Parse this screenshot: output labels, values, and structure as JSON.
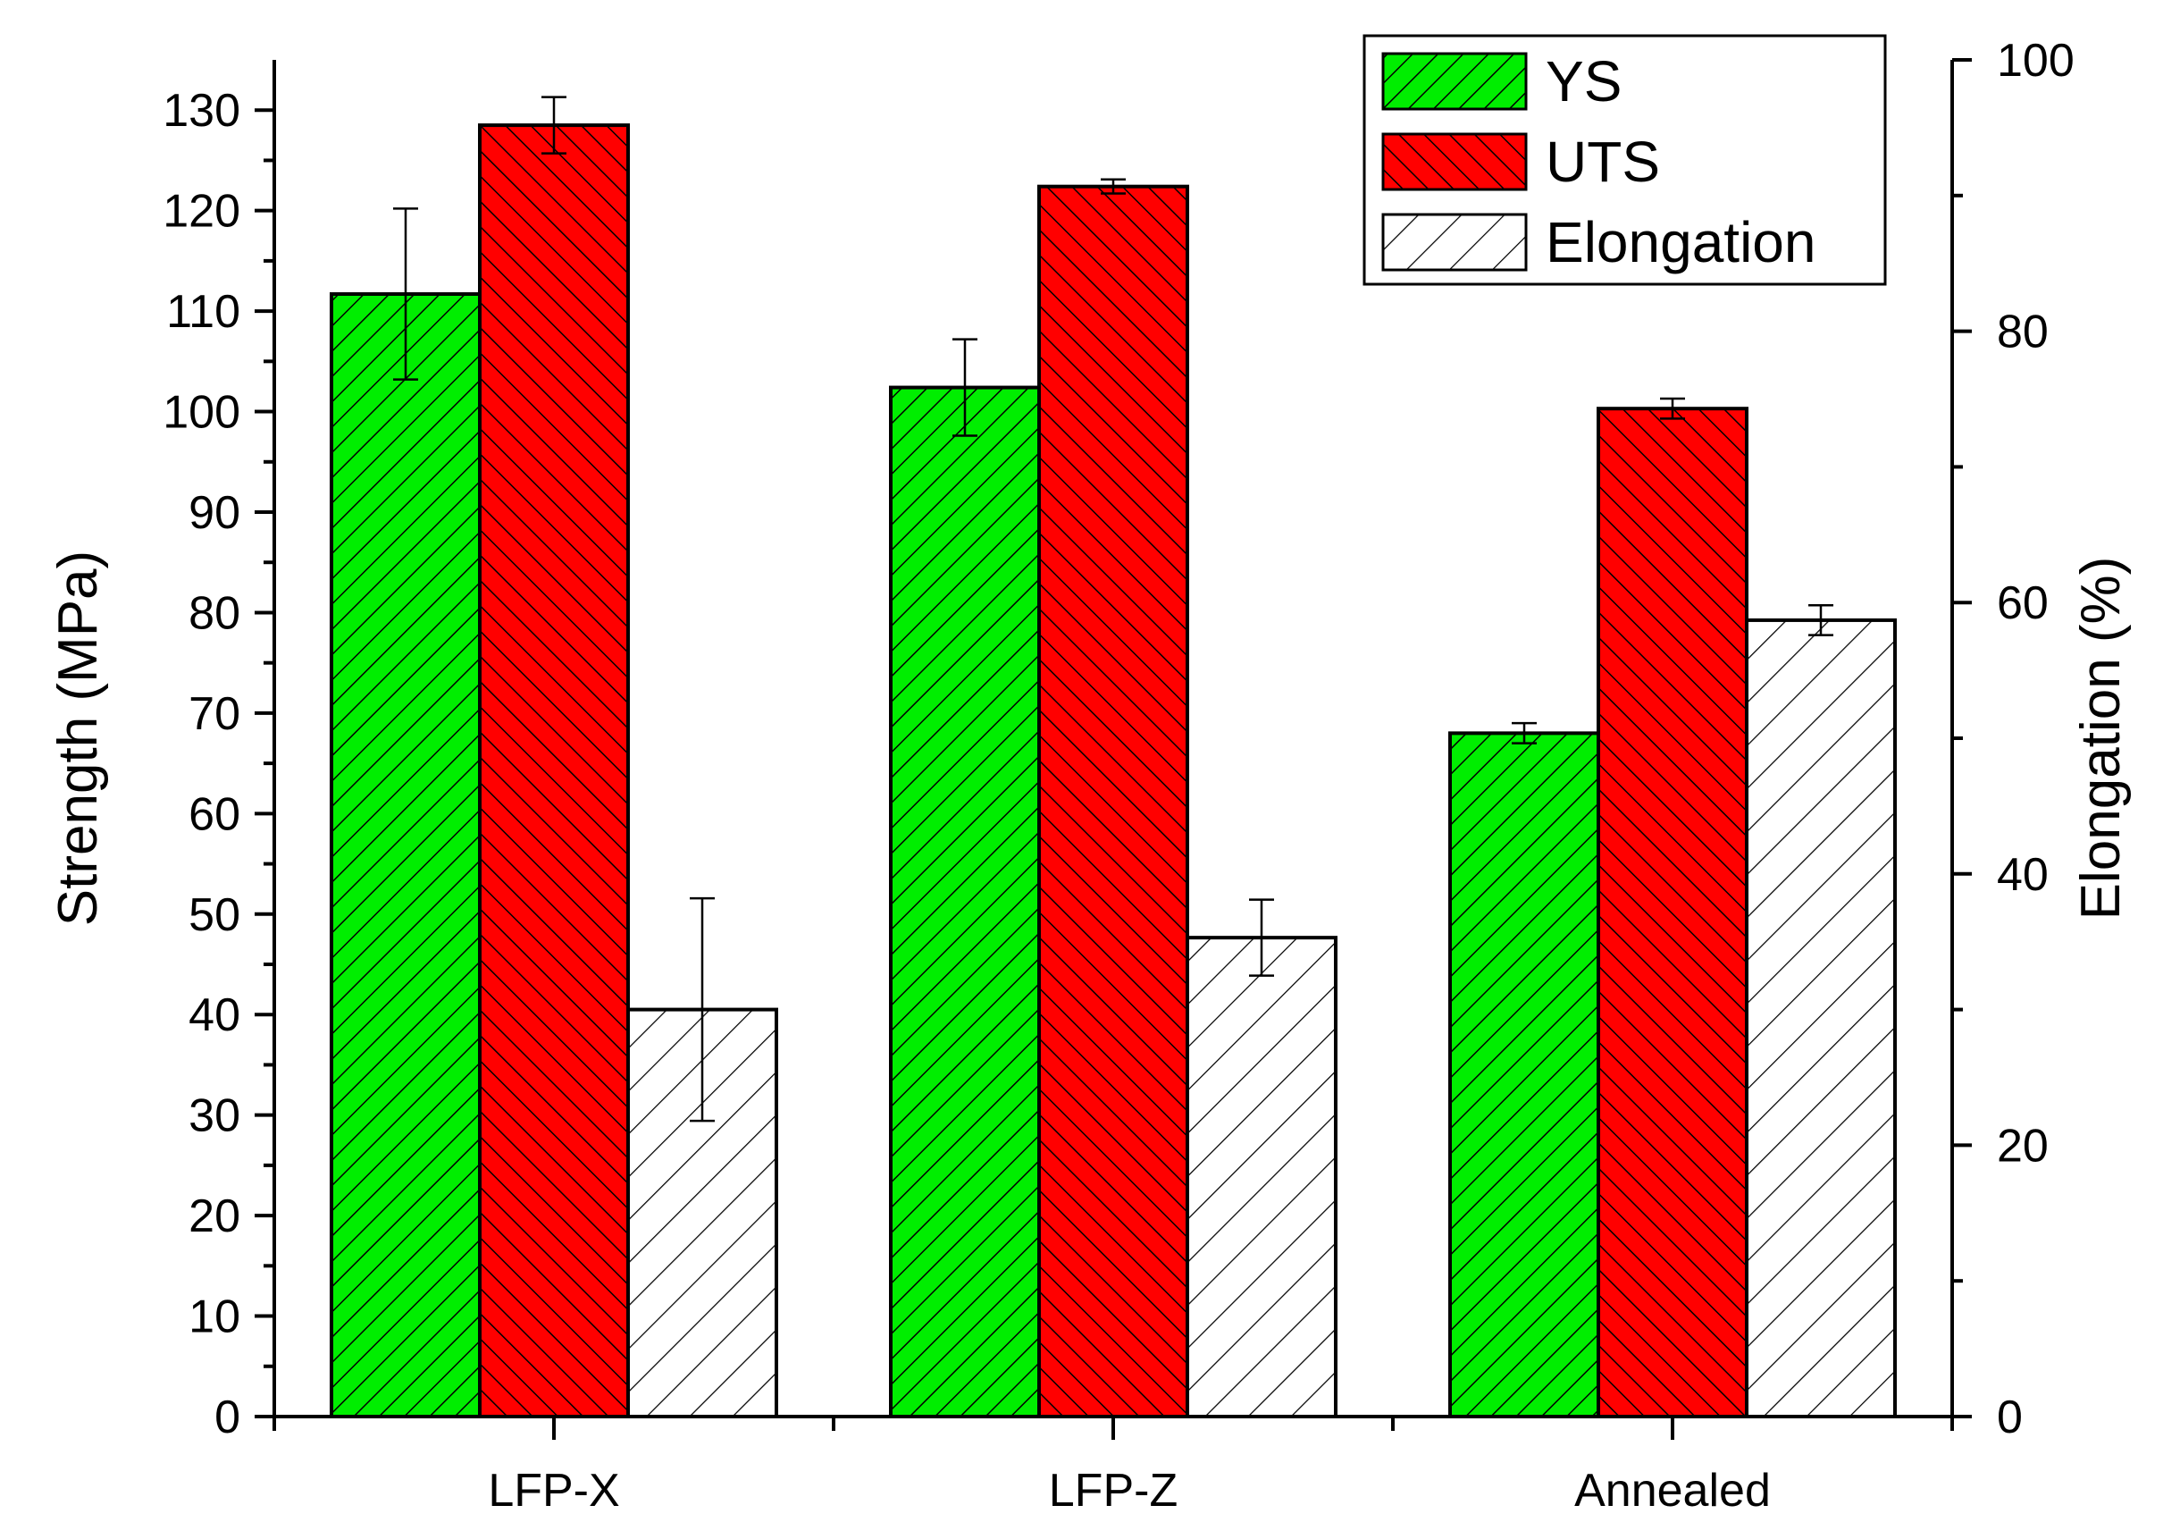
{
  "chart_data": {
    "type": "bar",
    "categories": [
      "LFP-X",
      "LFP-Z",
      "Annealed"
    ],
    "series": [
      {
        "name": "YS",
        "axis": "left",
        "values": [
          111.7,
          102.4,
          68.0
        ],
        "errors": [
          8.5,
          4.8,
          1.0
        ],
        "color": "#00ee00"
      },
      {
        "name": "UTS",
        "axis": "left",
        "values": [
          128.5,
          122.4,
          100.3
        ],
        "errors": [
          2.8,
          0.7,
          1.0
        ],
        "color": "#ff0000"
      },
      {
        "name": "Elongation",
        "axis": "right",
        "values": [
          30.0,
          35.3,
          58.7
        ],
        "errors": [
          8.2,
          2.8,
          1.1
        ],
        "color": "#ffffff"
      }
    ],
    "ylabel": "Strength (MPa)",
    "ylim": [
      0,
      135
    ],
    "yticks": [
      0,
      10,
      20,
      30,
      40,
      50,
      60,
      70,
      80,
      90,
      100,
      110,
      120,
      130
    ],
    "y2label": "Elongation (%)",
    "y2lim": [
      0,
      100
    ],
    "y2ticks": [
      0,
      20,
      40,
      60,
      80,
      100
    ],
    "legend_position": "top-right",
    "grid": false
  }
}
